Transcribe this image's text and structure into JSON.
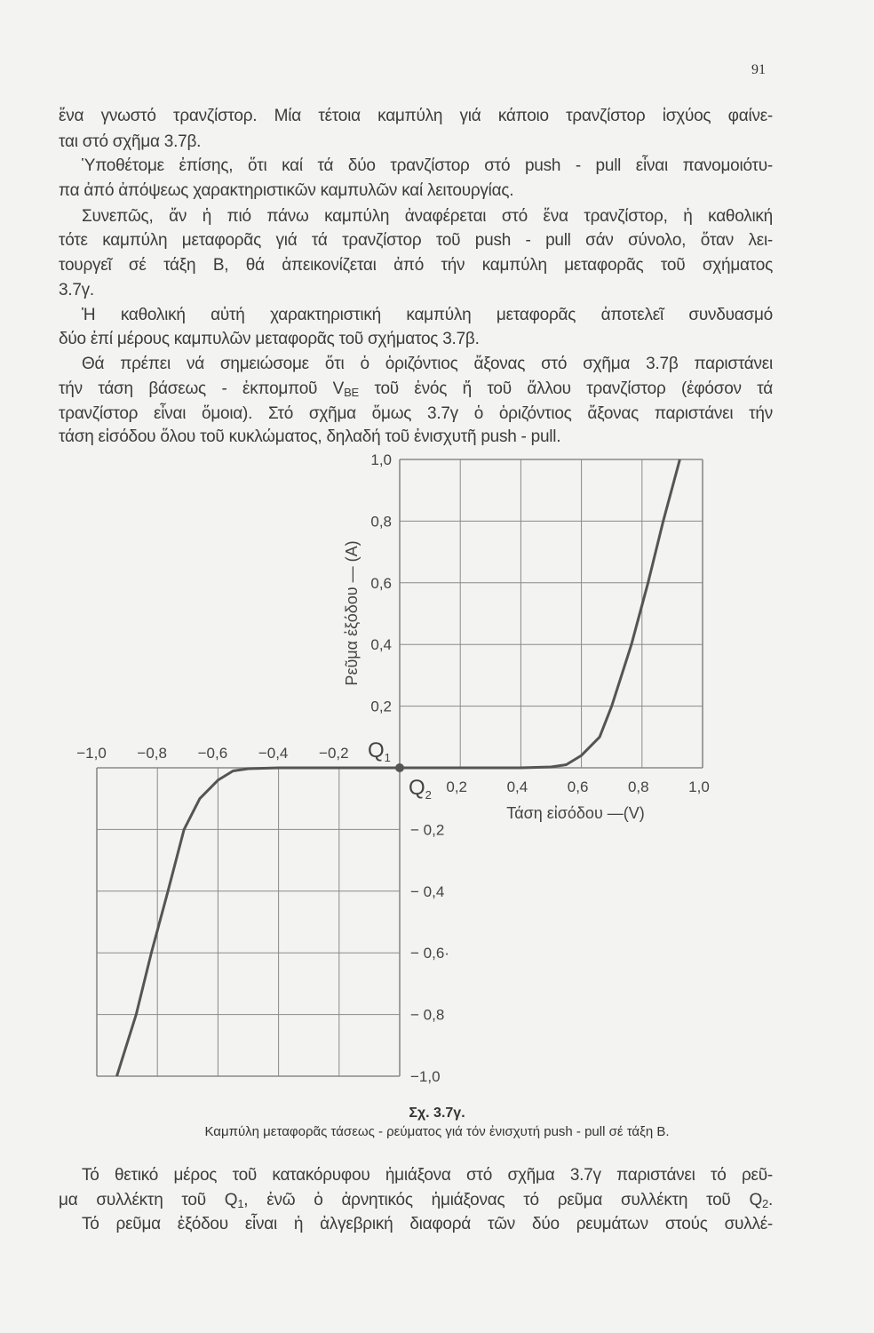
{
  "page_number": "91",
  "body_top": [
    {
      "text": "ἕνα γνωστό τρανζίστορ. Μία τέτοια καμπύλη γιά κάποιο τρανζίστορ ἰσχύος φαίνε-",
      "justify": true,
      "indent": false
    },
    {
      "text": "ται στό σχῆμα 3.7β.",
      "justify": false,
      "indent": false
    },
    {
      "text": "Ὑποθέτομε ἐπίσης, ὅτι καί τά δύο τρανζίστορ στό push - pull εἶναι πανομοιότυ-",
      "justify": true,
      "indent": true
    },
    {
      "text": "πα ἀπό ἀπόψεως χαρακτηριστικῶν καμπυλῶν καί λειτουργίας.",
      "justify": false,
      "indent": false
    },
    {
      "text": "Συνεπῶς, ἄν ἡ πιό πάνω καμπύλη ἀναφέρεται στό ἕνα τρανζίστορ, ἡ καθολική",
      "justify": true,
      "indent": true
    },
    {
      "text": "τότε καμπύλη μεταφορᾶς γιά τά τρανζίστορ τοῦ push - pull σάν σύνολο, ὅταν λει-",
      "justify": true,
      "indent": false
    },
    {
      "text": "τουργεῖ σέ τάξη Β, θά ἀπεικονίζεται ἀπό τήν καμπύλη μεταφορᾶς τοῦ σχήματος",
      "justify": true,
      "indent": false
    },
    {
      "text": "3.7γ.",
      "justify": false,
      "indent": false
    },
    {
      "text": "Ἡ καθολική αὐτή χαρακτηριστική καμπύλη μεταφορᾶς ἀποτελεῖ συνδυασμό",
      "justify": true,
      "indent": true
    },
    {
      "text": "δύο ἐπί μέρους καμπυλῶν μεταφορᾶς τοῦ σχήματος 3.7β.",
      "justify": false,
      "indent": false
    },
    {
      "text": "Θά πρέπει νά σημειώσομε ὅτι ὁ ὁριζόντιος ἄξονας στό σχῆμα 3.7β παριστάνει",
      "justify": true,
      "indent": true
    }
  ],
  "vbe_line": {
    "before": "τήν τάση βάσεως - ἐκπομποῦ V",
    "sub": "BE",
    "after": " τοῦ ἑνός ἤ τοῦ ἄλλου τρανζίστορ (ἐφόσον τά"
  },
  "body_top_end": [
    {
      "text": "τρανζίστορ εἶναι ὅμοια). Στό σχῆμα ὅμως 3.7γ ὁ ὁριζόντιος ἄξονας παριστάνει τήν",
      "justify": true,
      "indent": false
    },
    {
      "text": "τάση εἰσόδου ὅλου τοῦ κυκλώματος, δηλαδή τοῦ ἐνισχυτῆ push - pull.",
      "justify": false,
      "indent": false
    }
  ],
  "figure": {
    "number": "Σχ. 3.7γ.",
    "caption": "Καμπύλη μεταφορᾶς τάσεως - ρεύματος γιά τόν ἐνισχυτή push - pull σέ τάξη Β."
  },
  "body_bottom": {
    "line1": "Τό θετικό μέρος τοῦ κατακόρυφου ἡμιάξονα στό σχῆμα 3.7γ παριστάνει τό ρεῦ-",
    "line2": {
      "a": "μα συλλέκτη τοῦ Q",
      "s1": "1",
      "b": ", ἐνῶ ὁ ἀρνητικός ἡμιάξονας τό ρεῦμα συλλέκτη τοῦ Q",
      "s2": "2",
      "c": "."
    },
    "line3": "Τό ρεῦμα ἐξόδου εἶναι ἡ ἀλγεβρική διαφορά τῶν δύο ρευμάτων στούς συλλέ-"
  },
  "chart_data": {
    "type": "line",
    "xlabel": "Τάση εἰσόδου —(V)",
    "ylabel": "Ρεῦμα ἐξόδου — (A)",
    "xlim": [
      -1.0,
      1.0
    ],
    "ylim": [
      -1.0,
      1.0
    ],
    "grid": true,
    "grid_step": 0.2,
    "quadrants": [
      "upper-right",
      "lower-left"
    ],
    "x_ticks_positive": [
      "0,2",
      "0,4",
      "0,6",
      "0,8",
      "1,0"
    ],
    "x_ticks_negative": [
      "−1,0",
      "−0,8",
      "−0,6",
      "−0,4",
      "−0,2"
    ],
    "y_ticks_positive": [
      "0,2",
      "0,4",
      "0,6",
      "0,8",
      "1,0"
    ],
    "y_ticks_negative": [
      "− 0,2",
      "− 0,4",
      "− 0,6·",
      "− 0,8",
      "−1,0"
    ],
    "annotations": [
      {
        "label": "Q",
        "sub": "1"
      },
      {
        "label": "Q",
        "sub": "2"
      }
    ],
    "origin_marker": true,
    "series": [
      {
        "x": [
          -0.934,
          -0.87,
          -0.82,
          -0.765,
          -0.712,
          -0.66,
          -0.6,
          -0.55,
          -0.5,
          -0.4,
          -0.2,
          0,
          0.2,
          0.4,
          0.5,
          0.55,
          0.6,
          0.66,
          0.7,
          0.765,
          0.82,
          0.87,
          0.925
        ],
        "y": [
          -1.0,
          -0.8,
          -0.6,
          -0.4,
          -0.2,
          -0.1,
          -0.04,
          -0.01,
          -0.003,
          0,
          0,
          0,
          0,
          0,
          0.003,
          0.01,
          0.04,
          0.1,
          0.2,
          0.4,
          0.6,
          0.8,
          1.0
        ]
      }
    ],
    "colors": {
      "curve": "#555555",
      "grid": "#8a8a8a",
      "text": "#444444"
    }
  }
}
